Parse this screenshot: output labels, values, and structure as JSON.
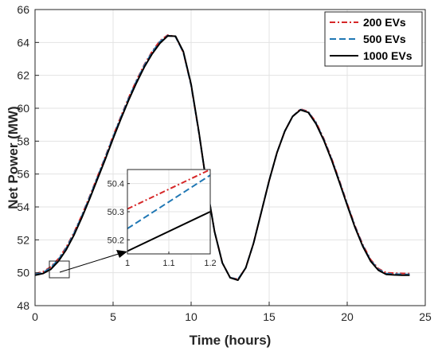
{
  "chart_data": [
    {
      "type": "line",
      "title": "",
      "xlabel": "Time (hours)",
      "ylabel": "Net Power (MW)",
      "xlim": [
        0,
        25
      ],
      "ylim": [
        48,
        66
      ],
      "xticks": [
        0,
        5,
        10,
        15,
        20,
        25
      ],
      "yticks": [
        48,
        50,
        52,
        54,
        56,
        58,
        60,
        62,
        64,
        66
      ],
      "grid": true,
      "legend_position": "top-right",
      "x": [
        0,
        0.5,
        1,
        1.5,
        2,
        2.5,
        3,
        3.5,
        4,
        4.5,
        5,
        5.5,
        6,
        6.5,
        7,
        7.5,
        8,
        8.5,
        9,
        9.5,
        10,
        10.5,
        11,
        11.5,
        12,
        12.5,
        13,
        13.5,
        14,
        14.5,
        15,
        15.5,
        16,
        16.5,
        17,
        17.5,
        18,
        18.5,
        19,
        19.5,
        20,
        20.5,
        21,
        21.5,
        22,
        22.5,
        23,
        23.5,
        24
      ],
      "series": [
        {
          "name": "200 EVs",
          "color": "#d62728",
          "style": "dash-dot",
          "values": [
            49.95,
            50.05,
            50.35,
            50.85,
            51.55,
            52.45,
            53.5,
            54.65,
            55.85,
            57.05,
            58.3,
            59.5,
            60.65,
            61.7,
            62.65,
            63.45,
            64.1,
            64.45,
            64.35,
            63.4,
            61.4,
            58.5,
            55.3,
            52.5,
            50.6,
            49.7,
            49.6,
            50.3,
            51.8,
            53.7,
            55.6,
            57.3,
            58.6,
            59.5,
            59.95,
            59.8,
            59.15,
            58.15,
            56.95,
            55.6,
            54.2,
            52.85,
            51.7,
            50.8,
            50.25,
            50.0,
            49.98,
            49.96,
            49.95
          ]
        },
        {
          "name": "500 EVs",
          "color": "#1f77b4",
          "style": "dashed",
          "values": [
            49.9,
            50.0,
            50.3,
            50.8,
            51.5,
            52.4,
            53.45,
            54.6,
            55.8,
            57.0,
            58.25,
            59.45,
            60.6,
            61.65,
            62.6,
            63.4,
            64.05,
            64.42,
            64.35,
            63.4,
            61.4,
            58.5,
            55.3,
            52.5,
            50.6,
            49.7,
            49.6,
            50.3,
            51.8,
            53.7,
            55.6,
            57.3,
            58.6,
            59.5,
            59.92,
            59.78,
            59.1,
            58.1,
            56.9,
            55.55,
            54.15,
            52.8,
            51.65,
            50.75,
            50.2,
            49.95,
            49.92,
            49.9,
            49.9
          ]
        },
        {
          "name": "1000 EVs",
          "color": "#000000",
          "style": "solid",
          "values": [
            49.85,
            49.95,
            50.2,
            50.7,
            51.4,
            52.3,
            53.35,
            54.5,
            55.7,
            56.9,
            58.15,
            59.35,
            60.5,
            61.55,
            62.5,
            63.3,
            63.95,
            64.4,
            64.38,
            63.45,
            61.45,
            58.55,
            55.3,
            52.5,
            50.6,
            49.7,
            49.55,
            50.3,
            51.8,
            53.7,
            55.6,
            57.3,
            58.6,
            59.5,
            59.9,
            59.75,
            59.05,
            58.05,
            56.85,
            55.5,
            54.1,
            52.75,
            51.6,
            50.7,
            50.15,
            49.9,
            49.87,
            49.85,
            49.85
          ]
        }
      ]
    },
    {
      "type": "line",
      "title": "",
      "xlabel": "",
      "ylabel": "",
      "xlim": [
        1,
        1.2
      ],
      "ylim": [
        50.15,
        50.45
      ],
      "xticks": [
        1,
        1.1,
        1.2
      ],
      "xtick_labels": [
        "1",
        "1.1",
        "1.2"
      ],
      "yticks": [
        50.2,
        50.3,
        50.4
      ],
      "grid": true,
      "x": [
        1,
        1.2
      ],
      "series": [
        {
          "name": "200 EVs",
          "color": "#d62728",
          "style": "dash-dot",
          "values": [
            50.31,
            50.45
          ]
        },
        {
          "name": "500 EVs",
          "color": "#1f77b4",
          "style": "dashed",
          "values": [
            50.24,
            50.43
          ]
        },
        {
          "name": "1000 EVs",
          "color": "#000000",
          "style": "solid",
          "values": [
            50.16,
            50.3
          ]
        }
      ]
    }
  ]
}
